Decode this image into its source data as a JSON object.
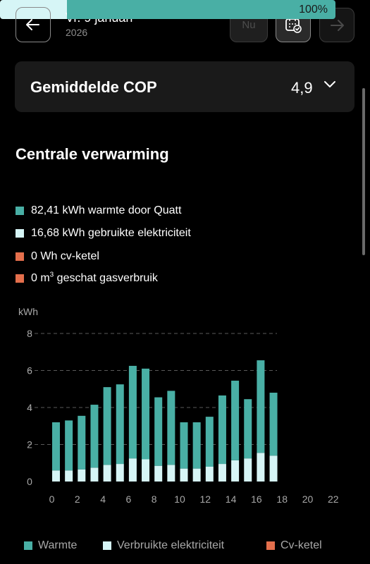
{
  "header": {
    "date_main": "Vr. 9 januari",
    "date_year": "2026",
    "nu_label": "Nu",
    "back_icon": "arrow-left-icon",
    "calendar_icon": "calendar-check-icon",
    "next_icon": "arrow-right-icon"
  },
  "cop": {
    "label": "Gemiddelde COP",
    "value": "4,9"
  },
  "section": {
    "title": "Centrale verwarming",
    "progress_label": "100%",
    "electricity_fraction": 0.2
  },
  "legend": {
    "warmth_text": "82,41 kWh warmte door Quatt",
    "electricity_text": "16,68 kWh gebruikte elektriciteit",
    "boiler_text": "0 Wh cv-ketel",
    "gas_prefix": "0 m",
    "gas_sup": "3",
    "gas_suffix": " geschat gasverbruik"
  },
  "colors": {
    "warmth": "#49afa5",
    "electricity": "#d6f5f6",
    "boiler": "#e46f4c",
    "grid": "#5a5a5a"
  },
  "chart_data": {
    "type": "bar",
    "ylabel": "kWh",
    "ylim": [
      0,
      8
    ],
    "yticks": [
      0,
      2,
      4,
      6,
      8
    ],
    "xticks": [
      0,
      2,
      4,
      6,
      8,
      10,
      12,
      14,
      16,
      18,
      20,
      22
    ],
    "categories": [
      0,
      1,
      2,
      3,
      4,
      5,
      6,
      7,
      8,
      9,
      10,
      11,
      12,
      13,
      14,
      15,
      16,
      17,
      18,
      19,
      20,
      21,
      22,
      23
    ],
    "stacked": true,
    "series": [
      {
        "name": "Warmte",
        "color": "#49afa5",
        "values": [
          2.6,
          2.7,
          2.9,
          3.4,
          4.2,
          4.3,
          5.0,
          4.9,
          3.7,
          4.0,
          2.5,
          2.5,
          2.7,
          3.7,
          4.3,
          3.2,
          5.0,
          3.4,
          0,
          0,
          0,
          0,
          0,
          0
        ]
      },
      {
        "name": "Verbruikte elektriciteit",
        "color": "#d6f5f6",
        "values": [
          0.6,
          0.6,
          0.65,
          0.75,
          0.9,
          0.95,
          1.25,
          1.2,
          0.85,
          0.9,
          0.7,
          0.7,
          0.8,
          0.95,
          1.15,
          1.25,
          1.55,
          1.4,
          0,
          0,
          0,
          0,
          0,
          0
        ]
      },
      {
        "name": "Cv-ketel",
        "color": "#e46f4c",
        "values": [
          0,
          0,
          0,
          0,
          0,
          0,
          0,
          0,
          0,
          0,
          0,
          0,
          0,
          0,
          0,
          0,
          0,
          0,
          0,
          0,
          0,
          0,
          0,
          0
        ]
      }
    ],
    "grid": true,
    "legend_position": "bottom"
  },
  "bottom_legend": {
    "warmth": "Warmte",
    "electricity": "Verbruikte elektriciteit",
    "boiler": "Cv-ketel"
  }
}
